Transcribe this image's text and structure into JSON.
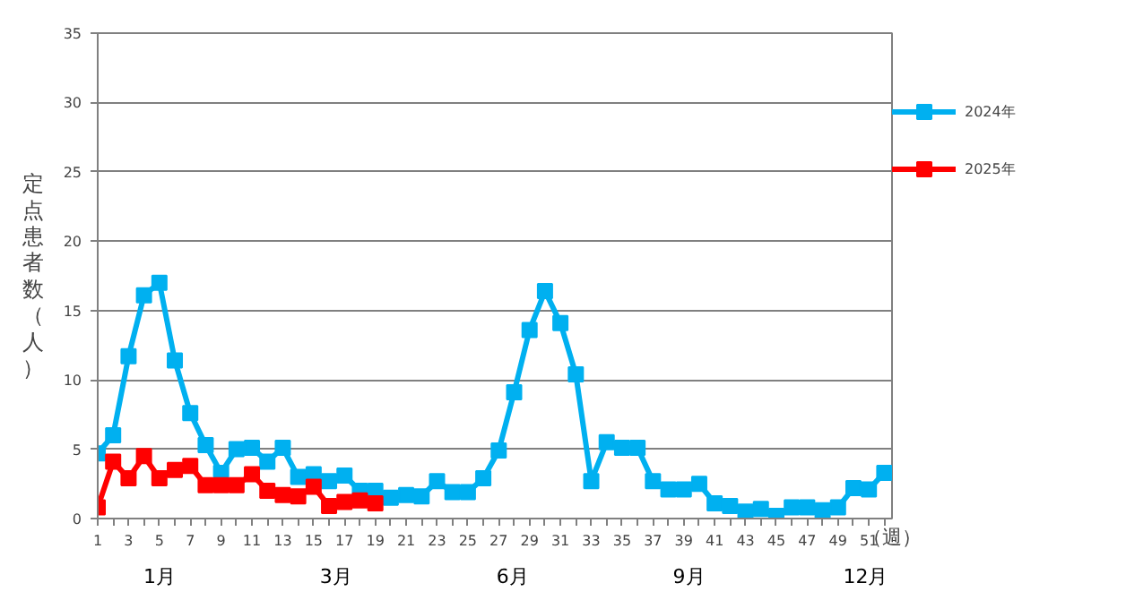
{
  "chart_data": {
    "type": "line",
    "ylabel": "定点患者数（人）",
    "xlabel": "（週）",
    "xlim": [
      1,
      52.5
    ],
    "ylim": [
      0,
      35
    ],
    "xticks": [
      1,
      {
        "value": 2,
        "label": null
      },
      3,
      {
        "value": 4,
        "label": null
      },
      5,
      {
        "value": 6,
        "label": null
      },
      7,
      {
        "value": 8,
        "label": null
      },
      9,
      {
        "value": 10,
        "label": null
      },
      11,
      {
        "value": 12,
        "label": null
      },
      13,
      {
        "value": 14,
        "label": null
      },
      15,
      {
        "value": 16,
        "label": null
      },
      17,
      {
        "value": 18,
        "label": null
      },
      19,
      {
        "value": 20,
        "label": null
      },
      21,
      {
        "value": 22,
        "label": null
      },
      23,
      {
        "value": 24,
        "label": null
      },
      25,
      {
        "value": 26,
        "label": null
      },
      27,
      {
        "value": 28,
        "label": null
      },
      29,
      {
        "value": 30,
        "label": null
      },
      31,
      {
        "value": 32,
        "label": null
      },
      33,
      {
        "value": 34,
        "label": null
      },
      35,
      {
        "value": 36,
        "label": null
      },
      37,
      {
        "value": 38,
        "label": null
      },
      39,
      {
        "value": 40,
        "label": null
      },
      41,
      {
        "value": 42,
        "label": null
      },
      43,
      {
        "value": 44,
        "label": null
      },
      45,
      {
        "value": 46,
        "label": null
      },
      47,
      {
        "value": 48,
        "label": null
      },
      49,
      {
        "value": 50,
        "label": null
      },
      51,
      {
        "value": 52,
        "label": null
      }
    ],
    "yticks": [
      0,
      5,
      10,
      15,
      20,
      25,
      30,
      35
    ],
    "grid": "y",
    "legend": "right",
    "marker": "square",
    "line_style": "solid",
    "annotations": [
      "1月",
      "3月",
      "6月",
      "9月",
      "12月"
    ],
    "series": [
      {
        "name": "2024年",
        "color": "#00b0f0",
        "x": [
          1,
          2,
          3,
          4,
          5,
          6,
          7,
          8,
          9,
          10,
          11,
          12,
          13,
          14,
          15,
          16,
          17,
          18,
          19,
          20,
          21,
          22,
          23,
          24,
          25,
          26,
          27,
          28,
          29,
          30,
          31,
          32,
          33,
          34,
          35,
          36,
          37,
          38,
          39,
          40,
          41,
          42,
          43,
          44,
          45,
          46,
          47,
          48,
          49,
          50,
          51,
          52
        ],
        "values": [
          4.7,
          6.0,
          11.7,
          16.1,
          17.0,
          11.4,
          7.6,
          5.3,
          3.3,
          5.0,
          5.1,
          4.1,
          5.1,
          3.0,
          3.2,
          2.7,
          3.1,
          2.0,
          2.0,
          1.5,
          1.7,
          1.6,
          2.7,
          1.9,
          1.9,
          2.9,
          4.9,
          9.1,
          13.6,
          16.4,
          14.1,
          10.4,
          2.7,
          5.5,
          5.1,
          5.1,
          2.7,
          2.1,
          2.1,
          2.5,
          1.1,
          0.9,
          0.5,
          0.7,
          0.2,
          0.8,
          0.8,
          0.6,
          0.8,
          2.2,
          2.1,
          3.3
        ]
      },
      {
        "name": "2025年",
        "color": "#ff0000",
        "x": [
          1,
          2,
          3,
          4,
          5,
          6,
          7,
          8,
          9,
          10,
          11,
          12,
          13,
          14,
          15,
          16,
          17,
          18,
          19
        ],
        "values": [
          0.8,
          4.1,
          2.9,
          4.5,
          2.9,
          3.5,
          3.8,
          2.4,
          2.4,
          2.4,
          3.2,
          2.0,
          1.7,
          1.6,
          2.3,
          0.9,
          1.2,
          1.3,
          1.1
        ]
      }
    ]
  }
}
